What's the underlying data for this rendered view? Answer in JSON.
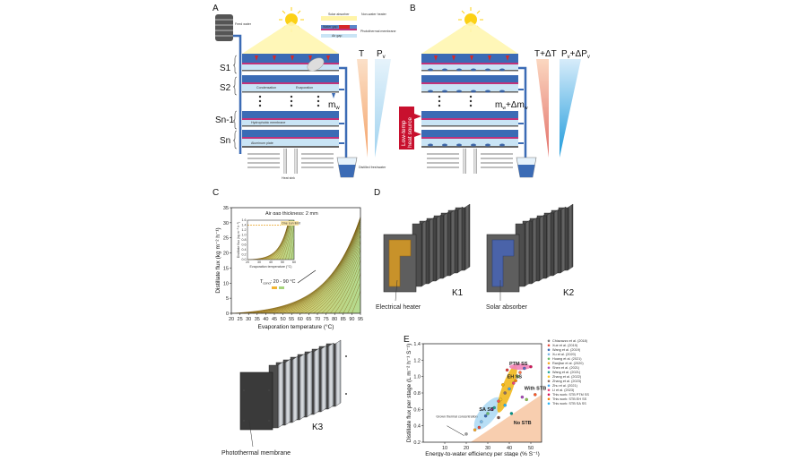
{
  "panels": {
    "A": "A",
    "B": "B",
    "C": "C",
    "D": "D",
    "E": "E"
  },
  "panelA": {
    "feed_water": "Feed water",
    "solar_absorber": "Solar absorber",
    "heat_insulator": "Non-water heater",
    "water_gap": "Water gap",
    "photothermal": "Photothermal membrane",
    "air_gap": "Air gap",
    "stages": [
      "S1",
      "S2",
      "Sn-1",
      "Sn"
    ],
    "condensation": "Condensation",
    "evaporation": "Evaporation",
    "hydrophobic": "Hydrophobic membrane",
    "aluminum": "Aluminum plate",
    "mw": "m",
    "mw_sub": "w",
    "T": "T",
    "Pv": "P",
    "Pv_sub": "v",
    "distilled": "Distilled freshwater",
    "heat_sink": "Heat sink"
  },
  "panelB": {
    "T": "T+ΔT",
    "Pv": "P",
    "Pv_sub": "v",
    "Pv_suffix": "+ΔP",
    "mw": "m",
    "mw_sub": "w",
    "mw_suffix": "+Δm",
    "heat_source_1": "Low-temp",
    "heat_source_2": "heat source"
  },
  "panelC": {
    "title": "Air gap thickness: 2 mm",
    "ylabel": "Distillate flux (kg m⁻² h⁻¹)",
    "xlabel": "Evaporation temperature (°C)",
    "annotation": "T",
    "annotation_sub": "cond",
    "annotation_range": ": 20 - 90 °C",
    "inset_label": "One sun limit",
    "inset_ylabel": "Distillate flux (kg m⁻² h⁻¹)",
    "inset_xlabel": "Evaporation temperature (°C)"
  },
  "panelD": {
    "K1": "K1",
    "K2": "K2",
    "K3": "K3",
    "heater": "Electrical heater",
    "absorber": "Solar absorber",
    "membrane": "Photothermal membrane"
  },
  "panelE": {
    "ylabel": "Distillate flux per stage (L m⁻² h⁻¹ S⁻¹)",
    "xlabel": "Energy-to-water efficiency per stage (% S⁻¹)",
    "labels": {
      "ptm": "PTM SS",
      "eh": "EH SS",
      "sa": "SA SS",
      "with": "With STB",
      "without": "No STB",
      "grad": "Grown thermal concentration"
    },
    "legend": [
      "Chiavazzo et al. (2018)",
      "Xue et al. (2019)",
      "Wang et al. (2019)",
      "Xu et al. (2020)",
      "Huang et al. (2021)",
      "Ranjbar et al. (2020)",
      "Shen et al. (2021)",
      "Wang et al. (2021)",
      "Zhang et al. (2022)",
      "Zhang et al. (2023)",
      "Zhu et al. (2021)",
      "Li et al. (2023)",
      "This work: STB PTM SS",
      "This work: STB EH SS",
      "This work: STB SA SS"
    ]
  },
  "colors": {
    "blue": "#3b6bb5",
    "red": "#d62828",
    "magenta": "#c0337a",
    "yellow": "#fff4a8",
    "heat": "#c8102e",
    "orange": "#f0b488"
  },
  "chart_data": {
    "type": "line",
    "title": "Air gap thickness: 2 mm",
    "xlabel": "Evaporation temperature (°C)",
    "ylabel": "Distillate flux (kg m⁻² h⁻¹)",
    "xlim": [
      20,
      95
    ],
    "ylim": [
      0,
      35
    ],
    "xticks": [
      20,
      25,
      30,
      35,
      40,
      45,
      50,
      55,
      60,
      65,
      70,
      75,
      80,
      85,
      90,
      95
    ],
    "yticks": [
      0,
      5,
      10,
      15,
      20,
      25,
      30,
      35
    ],
    "series_cond_temps": [
      20,
      22.5,
      25,
      27.5,
      30,
      32.5,
      35,
      37.5,
      40,
      42.5,
      45,
      47.5,
      50,
      52.5,
      55,
      57.5,
      60,
      62.5,
      65,
      67.5,
      70,
      72.5,
      75,
      77.5,
      80,
      82.5,
      85,
      87.5,
      90
    ],
    "inset": {
      "xlim": [
        20,
        60
      ],
      "ylim": [
        0,
        1.6
      ],
      "xticks": [
        20,
        30,
        40,
        50,
        60
      ],
      "yticks": [
        0,
        0.2,
        0.4,
        0.6,
        0.8,
        1.0,
        1.2,
        1.4,
        1.6
      ],
      "one_sun_limit": 1.4
    }
  },
  "scatter_data": {
    "type": "scatter",
    "xlim": [
      0,
      55
    ],
    "ylim": [
      0.2,
      1.4
    ],
    "xticks": [
      10,
      20,
      30,
      40,
      50
    ],
    "yticks": [
      0.2,
      0.4,
      0.6,
      0.8,
      1.0,
      1.2,
      1.4
    ],
    "points": [
      {
        "x": 24,
        "y": 0.35,
        "c": "#f5a623"
      },
      {
        "x": 26,
        "y": 0.38,
        "c": "#e94b3c"
      },
      {
        "x": 27,
        "y": 0.45,
        "c": "#7ab8e8"
      },
      {
        "x": 29,
        "y": 0.52,
        "c": "#3b6bb5"
      },
      {
        "x": 30,
        "y": 0.55,
        "c": "#66bb6a"
      },
      {
        "x": 32,
        "y": 0.6,
        "c": "#ab47bc"
      },
      {
        "x": 33,
        "y": 0.62,
        "c": "#26a69a"
      },
      {
        "x": 35,
        "y": 0.7,
        "c": "#ef5350"
      },
      {
        "x": 36,
        "y": 0.72,
        "c": "#ffca28"
      },
      {
        "x": 38,
        "y": 0.8,
        "c": "#8d6e63"
      },
      {
        "x": 40,
        "y": 0.85,
        "c": "#42a5f5"
      },
      {
        "x": 42,
        "y": 0.92,
        "c": "#ec407a"
      },
      {
        "x": 44,
        "y": 1.0,
        "c": "#9ccc65"
      },
      {
        "x": 45,
        "y": 1.05,
        "c": "#ff7043"
      },
      {
        "x": 47,
        "y": 1.1,
        "c": "#5c6bc0"
      },
      {
        "x": 50,
        "y": 1.12,
        "c": "#d4145a"
      },
      {
        "x": 43,
        "y": 0.95,
        "c": "#f57c00"
      },
      {
        "x": 38,
        "y": 0.65,
        "c": "#29b6f6"
      },
      {
        "x": 46,
        "y": 0.75,
        "c": "#ab47bc"
      },
      {
        "x": 48,
        "y": 0.72,
        "c": "#8bc34a"
      },
      {
        "x": 52,
        "y": 0.78,
        "c": "#ff5722"
      },
      {
        "x": 35,
        "y": 0.5,
        "c": "#795548"
      },
      {
        "x": 41,
        "y": 0.55,
        "c": "#009688"
      },
      {
        "x": 20,
        "y": 0.3,
        "c": "#9e9e9e"
      },
      {
        "x": 37,
        "y": 0.9,
        "c": "#ffb300"
      },
      {
        "x": 39,
        "y": 1.08,
        "c": "#e53935"
      }
    ]
  }
}
